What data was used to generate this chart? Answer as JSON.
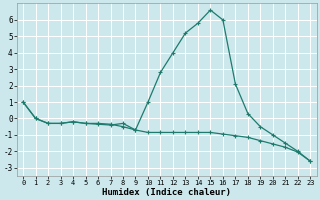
{
  "xlabel": "Humidex (Indice chaleur)",
  "background_color": "#cce8ec",
  "grid_color": "#ffffff",
  "line_color": "#1e7b6e",
  "line1_x": [
    0,
    1,
    2,
    3,
    4,
    5,
    6,
    7,
    8,
    9,
    10,
    11,
    12,
    13,
    14,
    15,
    16,
    17,
    18,
    19,
    20,
    21,
    22,
    23
  ],
  "line1_y": [
    1.0,
    0.0,
    -0.3,
    -0.3,
    -0.2,
    -0.3,
    -0.3,
    -0.35,
    -0.5,
    -0.7,
    1.0,
    2.8,
    4.0,
    5.2,
    5.8,
    6.6,
    6.0,
    2.1,
    0.3,
    -0.5,
    -1.0,
    -1.5,
    -2.0,
    -2.6
  ],
  "line2_x": [
    0,
    1,
    2,
    3,
    4,
    5,
    6,
    7,
    8,
    9,
    10,
    11,
    12,
    13,
    14,
    15,
    16,
    17,
    18,
    19,
    20,
    21,
    22,
    23
  ],
  "line2_y": [
    1.0,
    0.0,
    -0.3,
    -0.3,
    -0.2,
    -0.3,
    -0.35,
    -0.4,
    -0.3,
    -0.7,
    -0.85,
    -0.85,
    -0.85,
    -0.85,
    -0.85,
    -0.85,
    -0.95,
    -1.05,
    -1.15,
    -1.35,
    -1.55,
    -1.75,
    -2.05,
    -2.6
  ],
  "ylim": [
    -3.5,
    7.0
  ],
  "xlim": [
    -0.5,
    23.5
  ],
  "yticks": [
    -3,
    -2,
    -1,
    0,
    1,
    2,
    3,
    4,
    5,
    6
  ],
  "xticks": [
    0,
    1,
    2,
    3,
    4,
    5,
    6,
    7,
    8,
    9,
    10,
    11,
    12,
    13,
    14,
    15,
    16,
    17,
    18,
    19,
    20,
    21,
    22,
    23
  ]
}
